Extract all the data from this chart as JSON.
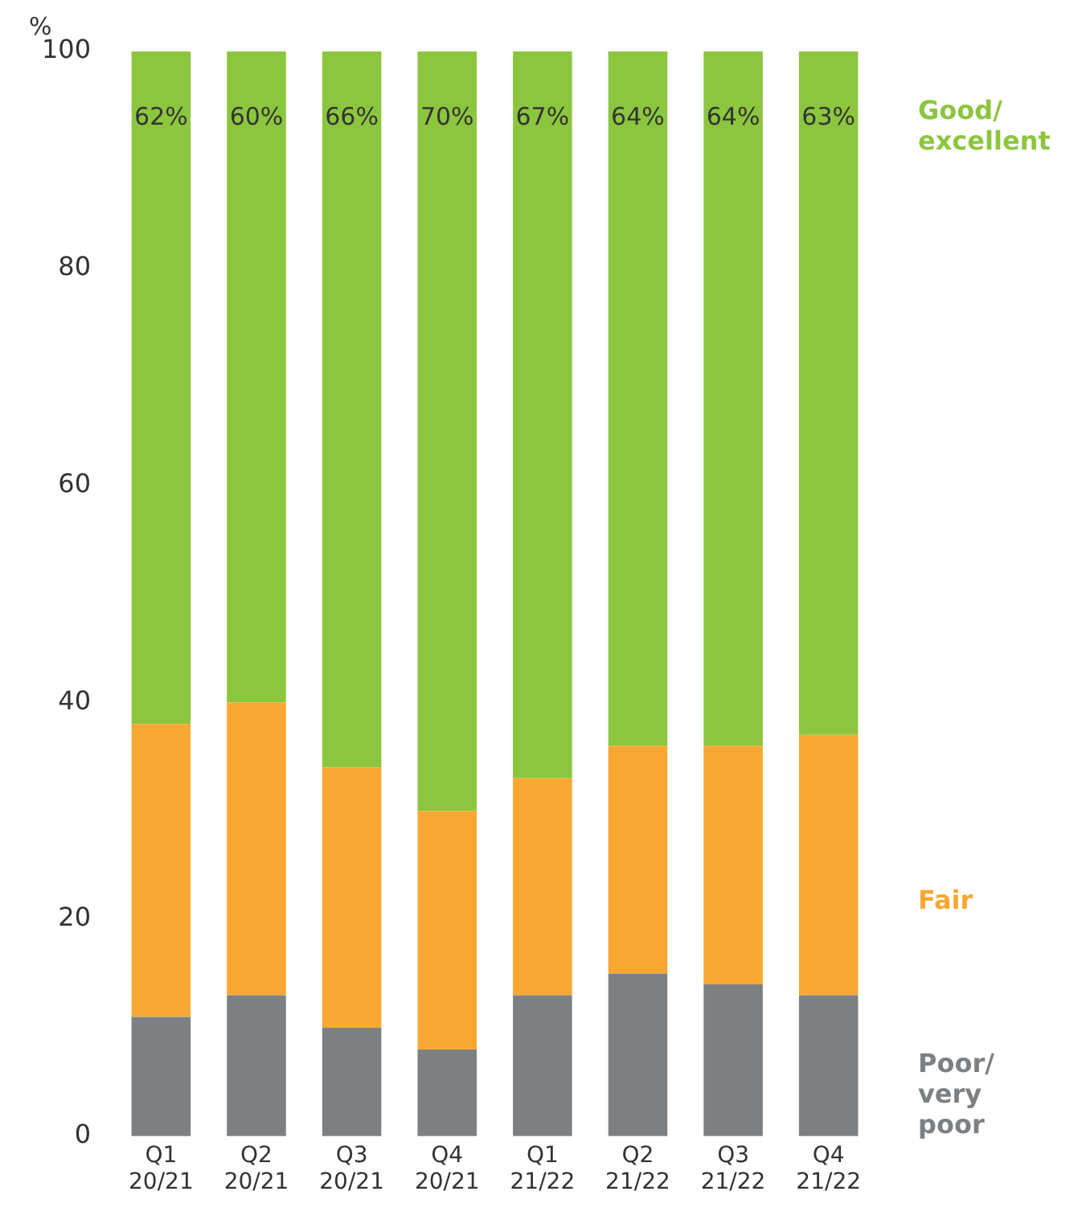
{
  "chart_data": {
    "type": "bar",
    "stacked": true,
    "ylabel": "%",
    "categories": [
      "Q1 20/21",
      "Q2 20/21",
      "Q3 20/21",
      "Q4 20/21",
      "Q1 21/22",
      "Q2 21/22",
      "Q3 21/22",
      "Q4 21/22"
    ],
    "series": [
      {
        "name": "Poor/ very poor",
        "color": "#7d8083",
        "values": [
          11,
          13,
          10,
          8,
          13,
          15,
          14,
          13
        ]
      },
      {
        "name": "Fair",
        "color": "#f8a832",
        "values": [
          27,
          27,
          24,
          22,
          20,
          21,
          22,
          24
        ]
      },
      {
        "name": "Good/ excellent",
        "color": "#8cc63f",
        "values": [
          62,
          60,
          66,
          70,
          67,
          64,
          64,
          63
        ],
        "value_labels": [
          "62%",
          "60%",
          "66%",
          "70%",
          "67%",
          "64%",
          "64%",
          "63%"
        ]
      }
    ],
    "ylim": [
      0,
      100
    ],
    "yticks": [
      0,
      20,
      40,
      60,
      80,
      100
    ],
    "grid": false,
    "legend": "right"
  }
}
